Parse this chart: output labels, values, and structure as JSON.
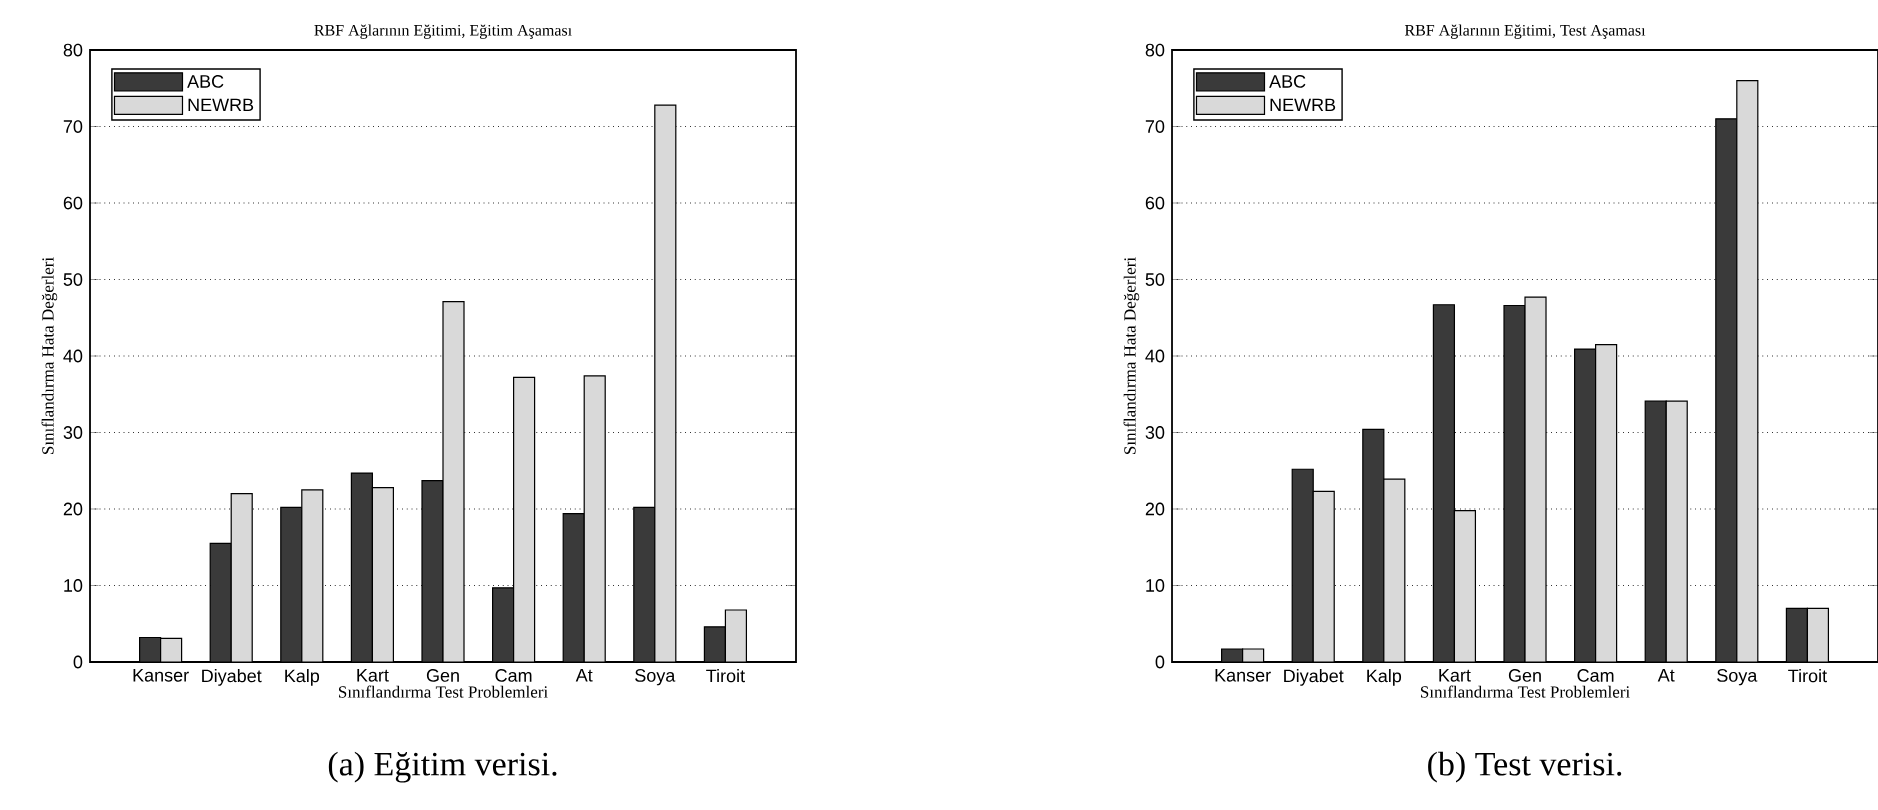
{
  "chart_data": [
    {
      "type": "bar",
      "title": "RBF Ağlarının Eğitimi, Eğitim Aşaması",
      "xlabel": "Sınıflandırma Test Problemleri",
      "ylabel": "Sınıflandırma Hata Değerleri",
      "categories": [
        "Kanser",
        "Diyabet",
        "Kalp",
        "Kart",
        "Gen",
        "Cam",
        "At",
        "Soya",
        "Tiroit"
      ],
      "series": [
        {
          "name": "ABC",
          "color": "#3a3a3a",
          "values": [
            3.2,
            15.5,
            20.2,
            24.7,
            23.7,
            9.7,
            19.4,
            20.2,
            4.6
          ]
        },
        {
          "name": "NEWRB",
          "color": "#d9d9d9",
          "values": [
            3.1,
            22.0,
            22.5,
            22.8,
            47.1,
            37.2,
            37.4,
            72.8,
            6.8
          ]
        }
      ],
      "ylim": [
        0,
        80
      ],
      "yticks": [
        0,
        10,
        20,
        30,
        40,
        50,
        60,
        70,
        80
      ],
      "grid": "y",
      "legend": "top left",
      "annotations": [
        "(a) Eğitim verisi."
      ]
    },
    {
      "type": "bar",
      "title": "RBF Ağlarının Eğitimi, Test Aşaması",
      "xlabel": "Sınıflandırma Test Problemleri",
      "ylabel": "Sınıflandırma Hata Değerleri",
      "categories": [
        "Kanser",
        "Diyabet",
        "Kalp",
        "Kart",
        "Gen",
        "Cam",
        "At",
        "Soya",
        "Tiroit"
      ],
      "series": [
        {
          "name": "ABC",
          "color": "#3a3a3a",
          "values": [
            1.7,
            25.2,
            30.4,
            46.7,
            46.6,
            40.9,
            34.1,
            71.0,
            7.0
          ]
        },
        {
          "name": "NEWRB",
          "color": "#d9d9d9",
          "values": [
            1.7,
            22.3,
            23.9,
            19.8,
            47.7,
            41.5,
            34.1,
            76.0,
            7.0
          ]
        }
      ],
      "ylim": [
        0,
        80
      ],
      "yticks": [
        0,
        10,
        20,
        30,
        40,
        50,
        60,
        70,
        80
      ],
      "grid": "y",
      "legend": "top left",
      "annotations": [
        "(b) Test verisi."
      ]
    }
  ]
}
